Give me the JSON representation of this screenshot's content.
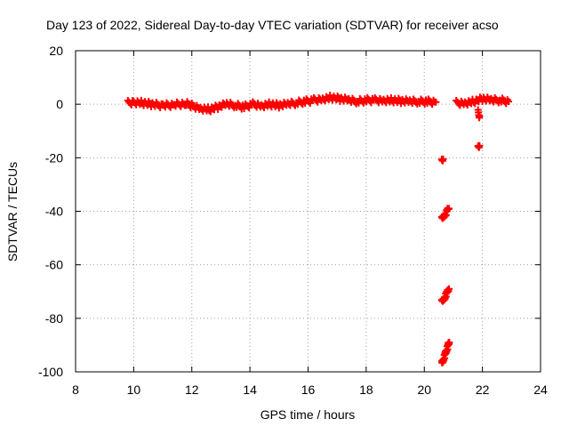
{
  "chart_data": {
    "type": "scatter",
    "title": "Day 123 of 2022, Sidereal Day-to-day VTEC variation (SDTVAR) for receiver acso",
    "xlabel": "GPS time / hours",
    "ylabel": "SDTVAR / TECUs",
    "xlim": [
      8,
      24
    ],
    "ylim": [
      -100,
      20
    ],
    "xticks": [
      "8",
      "10",
      "12",
      "14",
      "16",
      "18",
      "20",
      "22",
      "24"
    ],
    "yticks": [
      "-100",
      "-80",
      "-60",
      "-40",
      "-20",
      "0",
      "20"
    ],
    "grid": true,
    "marker": "plus",
    "colors": {
      "series": "#ff0000",
      "grid": "#a0a0a0",
      "axis": "#000000"
    },
    "series": [
      {
        "name": "SDTVAR",
        "segments": [
          {
            "x": [
              9.8,
              10.0,
              10.3,
              10.6,
              11.0,
              11.4,
              11.8,
              12.0,
              12.3,
              12.6,
              12.9,
              13.2,
              13.5,
              13.8,
              14.1,
              14.4,
              14.7,
              15.0,
              15.3,
              15.6,
              15.9,
              16.2,
              16.5,
              16.8,
              17.1,
              17.4,
              17.7,
              18.0,
              18.3,
              18.6,
              18.9,
              19.2,
              19.5,
              19.8,
              20.1,
              20.4
            ],
            "y": [
              0.5,
              0.8,
              0.5,
              0.0,
              -0.5,
              -0.2,
              0.2,
              -0.5,
              -1.5,
              -2.0,
              -1.0,
              0.0,
              -0.5,
              -1.0,
              0.0,
              -0.5,
              0.0,
              -0.5,
              0.0,
              0.5,
              1.0,
              1.5,
              2.0,
              2.5,
              2.0,
              1.5,
              1.0,
              1.5,
              1.5,
              1.5,
              1.5,
              1.2,
              1.0,
              1.0,
              1.0,
              0.8
            ]
          },
          {
            "x": [
              20.6,
              20.65
            ],
            "y": [
              -21.5,
              -20.5
            ]
          },
          {
            "x": [
              20.6,
              20.65,
              20.7,
              20.75,
              20.8,
              20.85
            ],
            "y": [
              -43,
              -42,
              -41,
              -40.5,
              -39.5,
              -39
            ]
          },
          {
            "x": [
              20.6,
              20.65,
              20.7,
              20.75,
              20.8,
              20.85
            ],
            "y": [
              -74,
              -73,
              -72,
              -71,
              -70,
              -69
            ]
          },
          {
            "x": [
              20.6,
              20.63,
              20.66,
              20.7,
              20.73,
              20.76,
              20.8,
              20.83,
              20.86
            ],
            "y": [
              -97,
              -96,
              -95,
              -94,
              -93,
              -92,
              -91,
              -90,
              -89
            ]
          },
          {
            "x": [
              21.1,
              21.4,
              21.7,
              22.0,
              22.3,
              22.6,
              22.9
            ],
            "y": [
              0.5,
              0.5,
              1.0,
              2.0,
              1.5,
              1.5,
              1.0
            ]
          },
          {
            "x": [
              21.85,
              21.9
            ],
            "y": [
              -3.0,
              -4.5
            ]
          },
          {
            "x": [
              21.85,
              21.9
            ],
            "y": [
              -16.5,
              -15.5
            ]
          }
        ]
      }
    ]
  }
}
